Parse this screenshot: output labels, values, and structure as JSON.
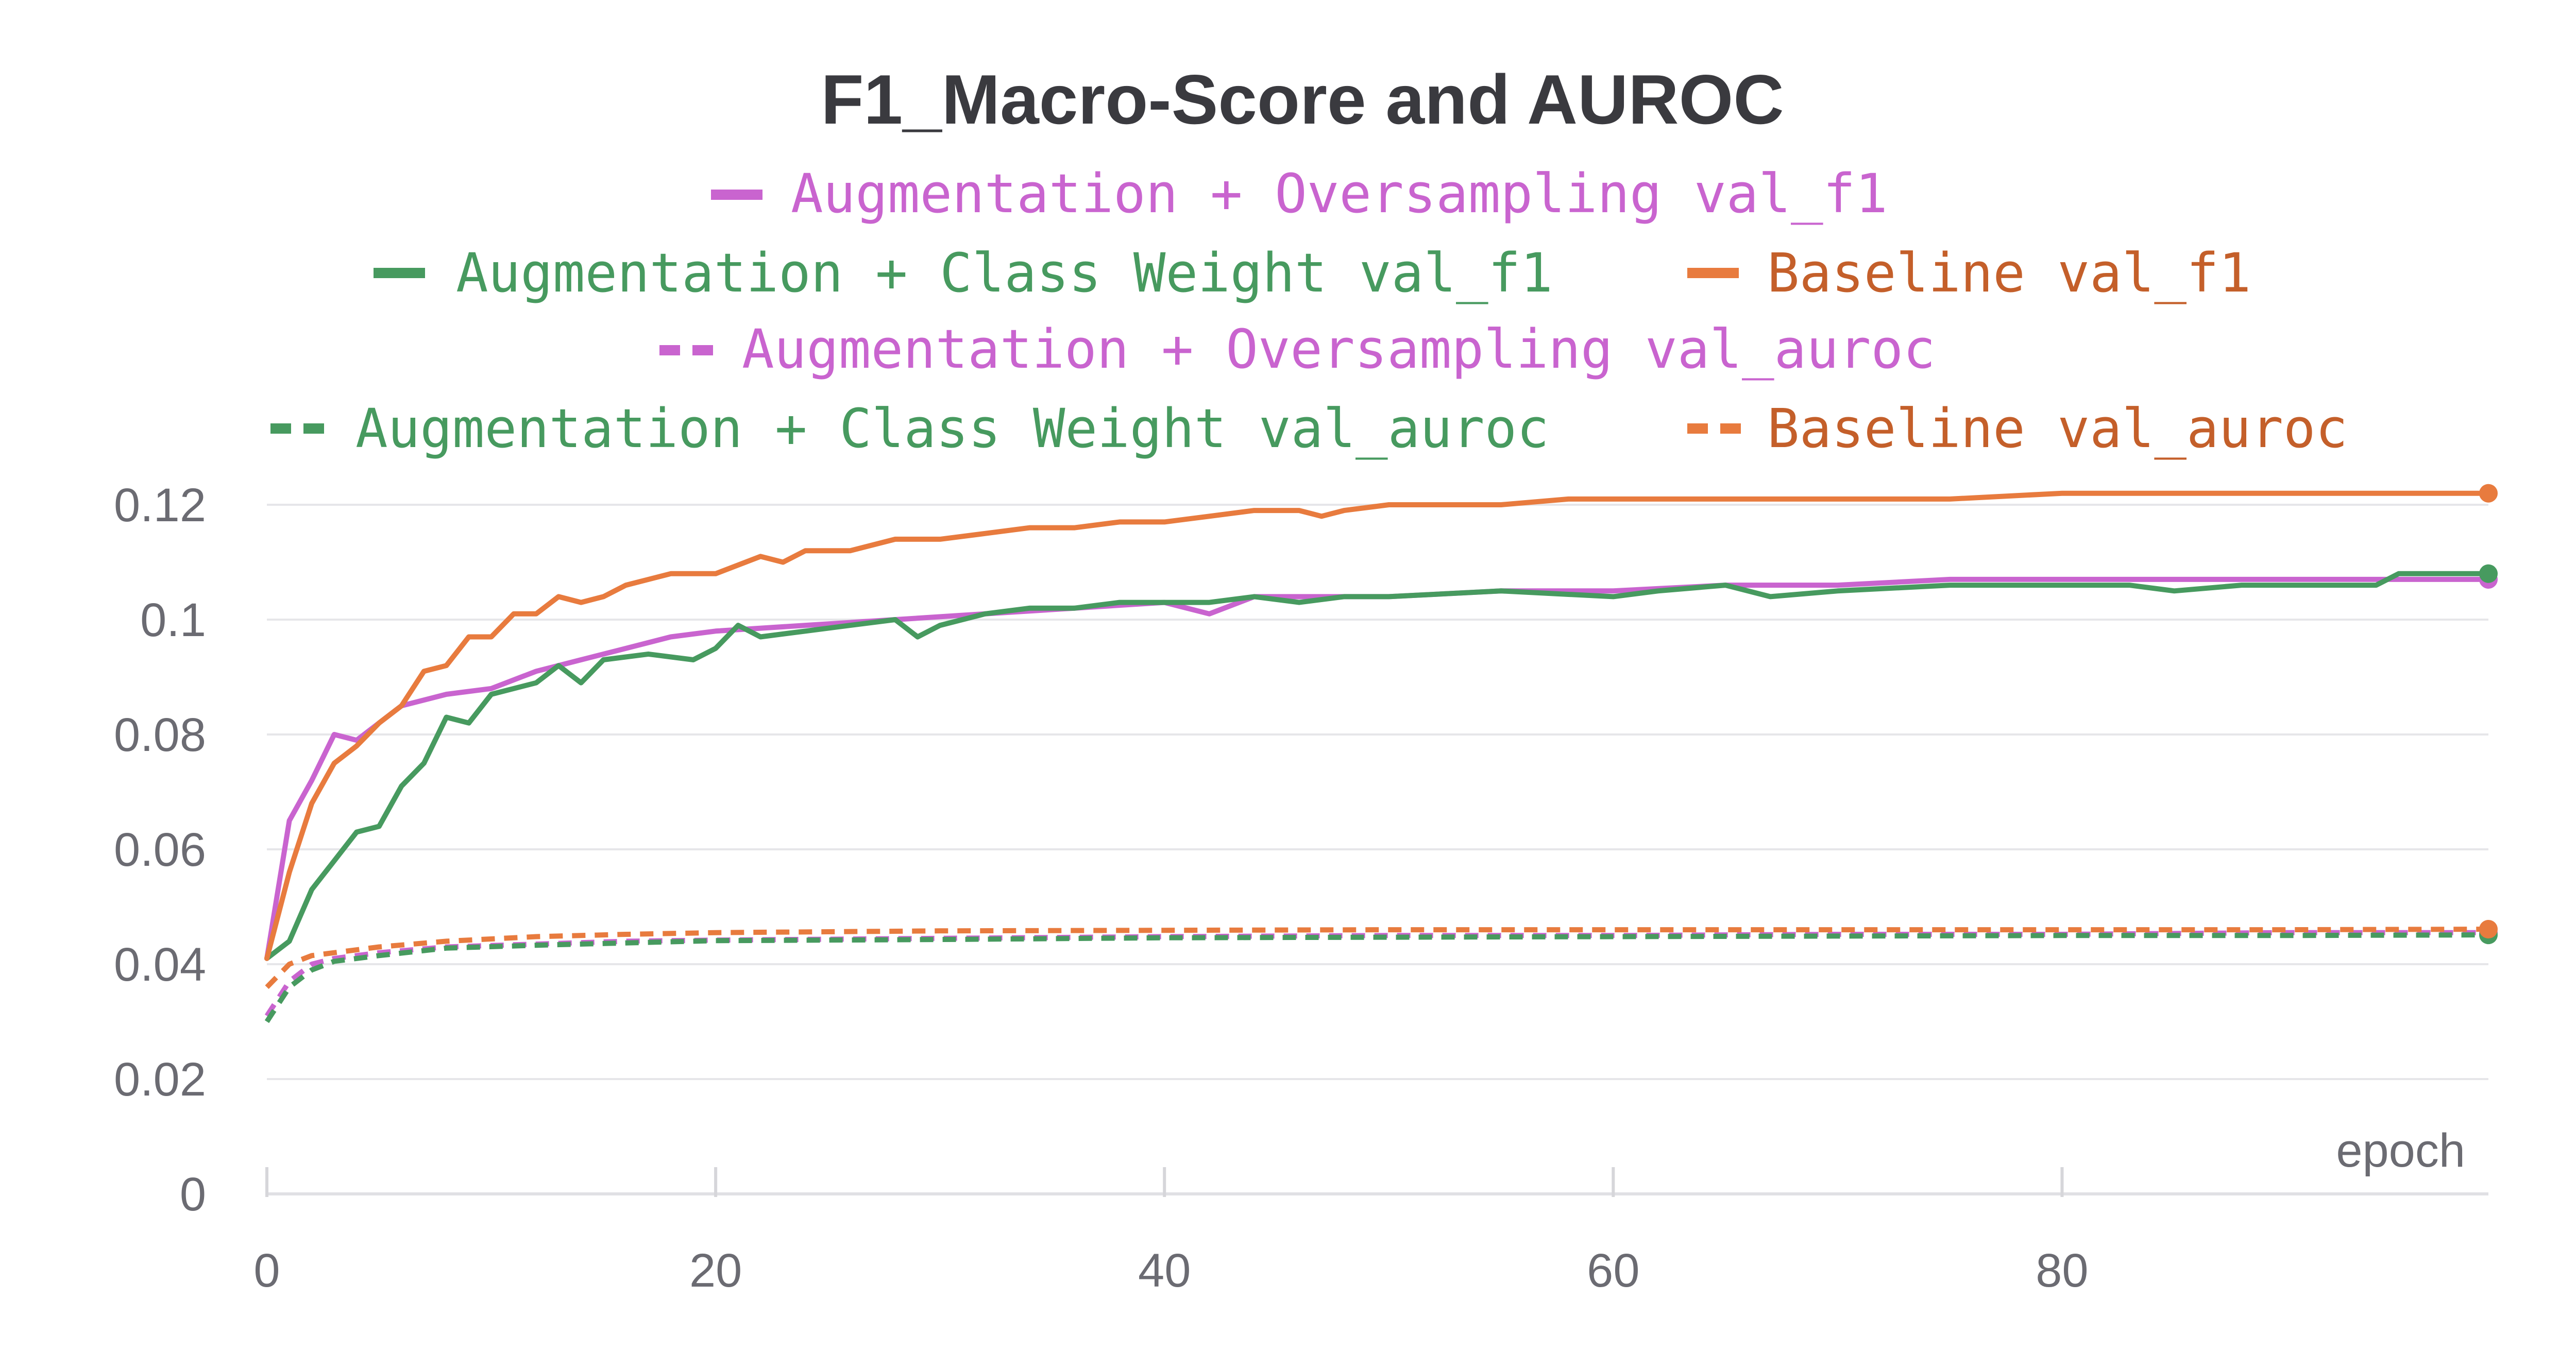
{
  "chart_data": {
    "type": "line",
    "title": "F1_Macro-Score and AUROC",
    "xlabel": "epoch",
    "ylabel": "",
    "xlim": [
      0,
      99
    ],
    "ylim": [
      0,
      0.12
    ],
    "x_ticks": [
      "0",
      "20",
      "40",
      "60",
      "80"
    ],
    "y_ticks": [
      "0",
      "0.02",
      "0.04",
      "0.06",
      "0.08",
      "0.1",
      "0.12"
    ],
    "grid": "horizontal",
    "legend_position": "top-center",
    "series": [
      {
        "name": "Augmentation + Oversampling val_f1",
        "color": "#c964cf",
        "dash": "solid",
        "points": [
          [
            0,
            0.041
          ],
          [
            1,
            0.065
          ],
          [
            2,
            0.072
          ],
          [
            3,
            0.08
          ],
          [
            4,
            0.079
          ],
          [
            5,
            0.082
          ],
          [
            6,
            0.085
          ],
          [
            8,
            0.087
          ],
          [
            10,
            0.088
          ],
          [
            12,
            0.091
          ],
          [
            14,
            0.093
          ],
          [
            16,
            0.095
          ],
          [
            18,
            0.097
          ],
          [
            20,
            0.098
          ],
          [
            24,
            0.099
          ],
          [
            28,
            0.1
          ],
          [
            32,
            0.101
          ],
          [
            36,
            0.102
          ],
          [
            40,
            0.103
          ],
          [
            42,
            0.101
          ],
          [
            44,
            0.104
          ],
          [
            46,
            0.104
          ],
          [
            50,
            0.104
          ],
          [
            55,
            0.105
          ],
          [
            60,
            0.105
          ],
          [
            65,
            0.106
          ],
          [
            70,
            0.106
          ],
          [
            75,
            0.107
          ],
          [
            80,
            0.107
          ],
          [
            85,
            0.107
          ],
          [
            90,
            0.107
          ],
          [
            95,
            0.107
          ],
          [
            99,
            0.107
          ]
        ]
      },
      {
        "name": "Augmentation + Class Weight val_f1",
        "color": "#479a5f",
        "dash": "solid",
        "points": [
          [
            0,
            0.041
          ],
          [
            1,
            0.044
          ],
          [
            2,
            0.053
          ],
          [
            3,
            0.058
          ],
          [
            4,
            0.063
          ],
          [
            5,
            0.064
          ],
          [
            6,
            0.071
          ],
          [
            7,
            0.075
          ],
          [
            8,
            0.083
          ],
          [
            9,
            0.082
          ],
          [
            10,
            0.087
          ],
          [
            12,
            0.089
          ],
          [
            13,
            0.092
          ],
          [
            14,
            0.089
          ],
          [
            15,
            0.093
          ],
          [
            17,
            0.094
          ],
          [
            19,
            0.093
          ],
          [
            20,
            0.095
          ],
          [
            21,
            0.099
          ],
          [
            22,
            0.097
          ],
          [
            24,
            0.098
          ],
          [
            26,
            0.099
          ],
          [
            28,
            0.1
          ],
          [
            29,
            0.097
          ],
          [
            30,
            0.099
          ],
          [
            32,
            0.101
          ],
          [
            34,
            0.102
          ],
          [
            36,
            0.102
          ],
          [
            38,
            0.103
          ],
          [
            40,
            0.103
          ],
          [
            42,
            0.103
          ],
          [
            44,
            0.104
          ],
          [
            46,
            0.103
          ],
          [
            48,
            0.104
          ],
          [
            50,
            0.104
          ],
          [
            55,
            0.105
          ],
          [
            60,
            0.104
          ],
          [
            62,
            0.105
          ],
          [
            65,
            0.106
          ],
          [
            67,
            0.104
          ],
          [
            70,
            0.105
          ],
          [
            75,
            0.106
          ],
          [
            78,
            0.106
          ],
          [
            80,
            0.106
          ],
          [
            83,
            0.106
          ],
          [
            85,
            0.105
          ],
          [
            88,
            0.106
          ],
          [
            90,
            0.106
          ],
          [
            94,
            0.106
          ],
          [
            95,
            0.108
          ],
          [
            99,
            0.108
          ]
        ]
      },
      {
        "name": "Baseline val_f1",
        "color": "#e87b3e",
        "dash": "solid",
        "points": [
          [
            0,
            0.041
          ],
          [
            1,
            0.056
          ],
          [
            2,
            0.068
          ],
          [
            3,
            0.075
          ],
          [
            4,
            0.078
          ],
          [
            5,
            0.082
          ],
          [
            6,
            0.085
          ],
          [
            7,
            0.091
          ],
          [
            8,
            0.092
          ],
          [
            9,
            0.097
          ],
          [
            10,
            0.097
          ],
          [
            11,
            0.101
          ],
          [
            12,
            0.101
          ],
          [
            13,
            0.104
          ],
          [
            14,
            0.103
          ],
          [
            15,
            0.104
          ],
          [
            16,
            0.106
          ],
          [
            18,
            0.108
          ],
          [
            20,
            0.108
          ],
          [
            22,
            0.111
          ],
          [
            23,
            0.11
          ],
          [
            24,
            0.112
          ],
          [
            26,
            0.112
          ],
          [
            28,
            0.114
          ],
          [
            30,
            0.114
          ],
          [
            32,
            0.115
          ],
          [
            34,
            0.116
          ],
          [
            36,
            0.116
          ],
          [
            38,
            0.117
          ],
          [
            40,
            0.117
          ],
          [
            42,
            0.118
          ],
          [
            44,
            0.119
          ],
          [
            46,
            0.119
          ],
          [
            47,
            0.118
          ],
          [
            48,
            0.119
          ],
          [
            50,
            0.12
          ],
          [
            55,
            0.12
          ],
          [
            58,
            0.121
          ],
          [
            60,
            0.121
          ],
          [
            65,
            0.121
          ],
          [
            70,
            0.121
          ],
          [
            75,
            0.121
          ],
          [
            80,
            0.122
          ],
          [
            85,
            0.122
          ],
          [
            90,
            0.122
          ],
          [
            95,
            0.122
          ],
          [
            99,
            0.122
          ]
        ]
      },
      {
        "name": "Augmentation + Oversampling val_auroc",
        "color": "#c964cf",
        "dash": "dashed",
        "points": [
          [
            0,
            0.031
          ],
          [
            1,
            0.037
          ],
          [
            2,
            0.04
          ],
          [
            3,
            0.041
          ],
          [
            5,
            0.042
          ],
          [
            8,
            0.043
          ],
          [
            12,
            0.0435
          ],
          [
            16,
            0.044
          ],
          [
            20,
            0.0442
          ],
          [
            30,
            0.0445
          ],
          [
            40,
            0.0448
          ],
          [
            50,
            0.045
          ],
          [
            60,
            0.045
          ],
          [
            70,
            0.0452
          ],
          [
            80,
            0.0452
          ],
          [
            90,
            0.0455
          ],
          [
            99,
            0.0455
          ]
        ]
      },
      {
        "name": "Augmentation + Class Weight val_auroc",
        "color": "#479a5f",
        "dash": "dashed",
        "points": [
          [
            0,
            0.03
          ],
          [
            1,
            0.036
          ],
          [
            2,
            0.039
          ],
          [
            3,
            0.0405
          ],
          [
            5,
            0.0415
          ],
          [
            8,
            0.0428
          ],
          [
            12,
            0.0433
          ],
          [
            16,
            0.0437
          ],
          [
            20,
            0.0441
          ],
          [
            30,
            0.0443
          ],
          [
            40,
            0.0446
          ],
          [
            50,
            0.0447
          ],
          [
            60,
            0.0448
          ],
          [
            70,
            0.0449
          ],
          [
            80,
            0.045
          ],
          [
            90,
            0.045
          ],
          [
            99,
            0.0451
          ]
        ]
      },
      {
        "name": "Baseline val_auroc",
        "color": "#e87b3e",
        "dash": "dashed",
        "points": [
          [
            0,
            0.036
          ],
          [
            1,
            0.04
          ],
          [
            2,
            0.0415
          ],
          [
            3,
            0.042
          ],
          [
            5,
            0.043
          ],
          [
            8,
            0.044
          ],
          [
            12,
            0.0448
          ],
          [
            16,
            0.0452
          ],
          [
            20,
            0.0455
          ],
          [
            30,
            0.0458
          ],
          [
            40,
            0.0459
          ],
          [
            50,
            0.046
          ],
          [
            60,
            0.046
          ],
          [
            70,
            0.046
          ],
          [
            80,
            0.046
          ],
          [
            90,
            0.046
          ],
          [
            99,
            0.0461
          ]
        ]
      }
    ]
  }
}
